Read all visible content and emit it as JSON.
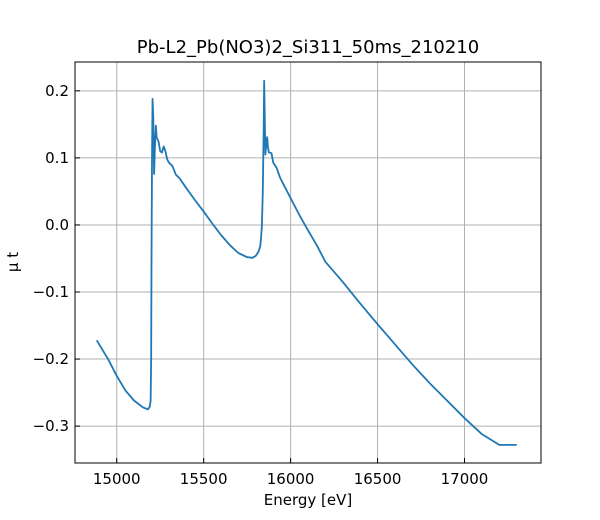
{
  "chart_data": {
    "type": "line",
    "title": "Pb-L2_Pb(NO3)2_Si311_50ms_210210",
    "xlabel": "Energy [eV]",
    "ylabel": "μ t",
    "xlim": [
      14760,
      17440
    ],
    "ylim": [
      -0.355,
      0.243
    ],
    "xticks": [
      15000,
      15500,
      16000,
      16500,
      17000
    ],
    "xtick_labels": [
      "15000",
      "15500",
      "16000",
      "16500",
      "17000"
    ],
    "yticks": [
      -0.3,
      -0.2,
      -0.1,
      0.0,
      0.1,
      0.2
    ],
    "ytick_labels": [
      "−0.3",
      "−0.2",
      "−0.1",
      "0.0",
      "0.1",
      "0.2"
    ],
    "grid": true,
    "line_color": "#1f77b4",
    "series": [
      {
        "x": [
          14885,
          14950,
          15000,
          15050,
          15100,
          15150,
          15180,
          15190,
          15195,
          15198,
          15200,
          15203,
          15206,
          15210,
          15215,
          15220,
          15225,
          15230,
          15240,
          15250,
          15260,
          15270,
          15280,
          15290,
          15300,
          15320,
          15340,
          15360,
          15400,
          15450,
          15500,
          15550,
          15600,
          15650,
          15700,
          15750,
          15780,
          15800,
          15815,
          15825,
          15830,
          15835,
          15840,
          15845,
          15848,
          15852,
          15855,
          15860,
          15865,
          15870,
          15875,
          15880,
          15890,
          15900,
          15920,
          15940,
          15960,
          16000,
          16050,
          16100,
          16150,
          16200,
          16300,
          16400,
          16500,
          16600,
          16700,
          16800,
          16900,
          17000,
          17100,
          17200,
          17300
        ],
        "y": [
          -0.172,
          -0.2,
          -0.225,
          -0.247,
          -0.262,
          -0.272,
          -0.275,
          -0.271,
          -0.262,
          -0.2,
          -0.05,
          0.1,
          0.188,
          0.16,
          0.076,
          0.12,
          0.148,
          0.13,
          0.125,
          0.11,
          0.108,
          0.117,
          0.11,
          0.098,
          0.093,
          0.088,
          0.075,
          0.07,
          0.055,
          0.037,
          0.02,
          0.002,
          -0.015,
          -0.03,
          -0.042,
          -0.048,
          -0.049,
          -0.046,
          -0.04,
          -0.032,
          -0.02,
          0.0,
          0.05,
          0.14,
          0.215,
          0.15,
          0.105,
          0.12,
          0.131,
          0.115,
          0.108,
          0.108,
          0.107,
          0.093,
          0.085,
          0.07,
          0.06,
          0.04,
          0.015,
          -0.008,
          -0.03,
          -0.055,
          -0.085,
          -0.117,
          -0.148,
          -0.178,
          -0.208,
          -0.236,
          -0.262,
          -0.288,
          -0.312,
          -0.328,
          -0.328
        ]
      }
    ]
  }
}
